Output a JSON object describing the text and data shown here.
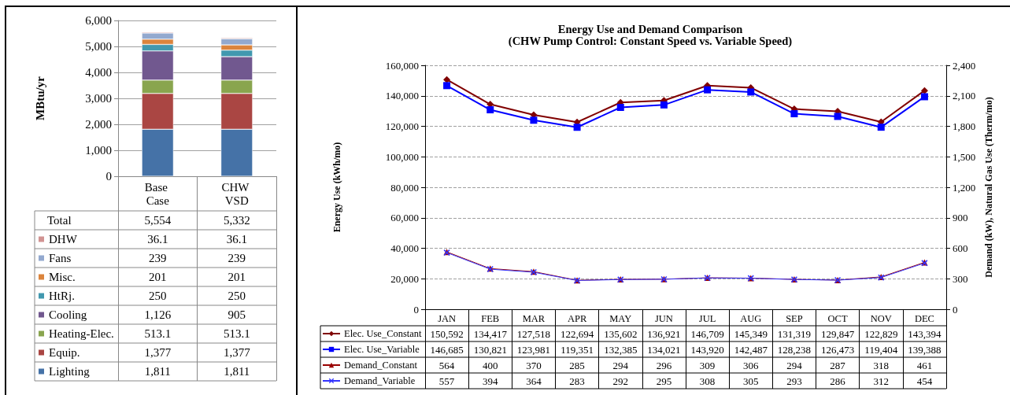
{
  "chart_data": [
    {
      "type": "bar",
      "stacked": true,
      "categories": [
        "Base Case",
        "CHW VSD"
      ],
      "ylabel": "MBtu/yr",
      "ylim": [
        0,
        6000
      ],
      "yticks": [
        0,
        {
          "value": 1000,
          "label": "1,000"
        },
        {
          "value": 2000,
          "label": "2,000"
        },
        {
          "value": 3000,
          "label": "3,000"
        },
        {
          "value": 4000,
          "label": "4,000"
        },
        {
          "value": 5000,
          "label": "5,000"
        },
        {
          "value": 6000,
          "label": "6,000"
        }
      ],
      "grid": "y",
      "legend": "bottom",
      "annotations": [
        "Total",
        "5,554",
        "5,332"
      ],
      "series": [
        {
          "name": "Lighting",
          "color": "#4572a7",
          "values": [
            1811,
            1811
          ],
          "value_labels": [
            "1,811",
            "1,811"
          ]
        },
        {
          "name": "Equip.",
          "color": "#aa4643",
          "values": [
            1377,
            1377
          ],
          "value_labels": [
            "1,377",
            "1,377"
          ]
        },
        {
          "name": "Heating-Elec.",
          "color": "#89a54e",
          "values": [
            513.1,
            513.1
          ],
          "value_labels": [
            "513.1",
            "513.1"
          ]
        },
        {
          "name": "Cooling",
          "color": "#71588f",
          "values": [
            1126,
            905
          ],
          "value_labels": [
            "1,126",
            "905"
          ]
        },
        {
          "name": "HtRj.",
          "color": "#4198af",
          "values": [
            250,
            250
          ],
          "value_labels": [
            "250",
            "250"
          ]
        },
        {
          "name": "Misc.",
          "color": "#db843d",
          "values": [
            201,
            201
          ],
          "value_labels": [
            "201",
            "201"
          ]
        },
        {
          "name": "Fans",
          "color": "#93a9cf",
          "values": [
            239,
            239
          ],
          "value_labels": [
            "239",
            "239"
          ]
        },
        {
          "name": "DHW",
          "color": "#d19392",
          "values": [
            36.1,
            36.1
          ],
          "value_labels": [
            "36.1",
            "36.1"
          ]
        }
      ]
    },
    {
      "type": "line",
      "title": "Energy Use and Demand Comparison",
      "subtitle": "(CHW Pump Control: Constant Speed vs. Variable Speed)",
      "categories": [
        "JAN",
        "FEB",
        "MAR",
        "APR",
        "MAY",
        "JUN",
        "JUL",
        "AUG",
        "SEP",
        "OCT",
        "NOV",
        "DEC"
      ],
      "ylabel": "Energy Use (kWh/mo)",
      "y2label": "Demand (kW), Natural Gas Use (Therm/mo)",
      "ylim": [
        0,
        160000
      ],
      "yticks": [
        0,
        {
          "value": 20000,
          "label": "20,000"
        },
        {
          "value": 40000,
          "label": "40,000"
        },
        {
          "value": 60000,
          "label": "60,000"
        },
        {
          "value": 80000,
          "label": "80,000"
        },
        {
          "value": 100000,
          "label": "100,000"
        },
        {
          "value": 120000,
          "label": "120,000"
        },
        {
          "value": 140000,
          "label": "140,000"
        },
        {
          "value": 160000,
          "label": "160,000"
        }
      ],
      "y2lim": [
        0,
        2400
      ],
      "y2ticks": [
        0,
        300,
        600,
        900,
        {
          "value": 1200,
          "label": "1,200"
        },
        {
          "value": 1500,
          "label": "1,500"
        },
        {
          "value": 1800,
          "label": "1,800"
        },
        {
          "value": 2100,
          "label": "2,100"
        },
        {
          "value": 2400,
          "label": "2,400"
        }
      ],
      "grid": "y",
      "legend": "bottom",
      "series": [
        {
          "name": "Elec. Use_Constant",
          "color": "#800000",
          "marker": "diamond",
          "values": [
            150592,
            134417,
            127518,
            122694,
            135602,
            136921,
            146709,
            145349,
            131319,
            129847,
            122829,
            143394
          ],
          "value_labels": [
            "150,592",
            "134,417",
            "127,518",
            "122,694",
            "135,602",
            "136,921",
            "146,709",
            "145,349",
            "131,319",
            "129,847",
            "122,829",
            "143,394"
          ]
        },
        {
          "name": "Elec. Use_Variable",
          "color": "#0000ff",
          "marker": "square",
          "values": [
            146685,
            130821,
            123981,
            119351,
            132385,
            134021,
            143920,
            142487,
            128238,
            126473,
            119404,
            139388
          ],
          "value_labels": [
            "146,685",
            "130,821",
            "123,981",
            "119,351",
            "132,385",
            "134,021",
            "143,920",
            "142,487",
            "128,238",
            "126,473",
            "119,404",
            "139,388"
          ]
        },
        {
          "name": "Demand_Constant",
          "color": "#990000",
          "marker": "triangle",
          "axis": "y2",
          "values": [
            564,
            400,
            370,
            285,
            294,
            296,
            309,
            306,
            294,
            287,
            318,
            461
          ],
          "value_labels": [
            "564",
            "400",
            "370",
            "285",
            "294",
            "296",
            "309",
            "306",
            "294",
            "287",
            "318",
            "461"
          ]
        },
        {
          "name": "Demand_Variable",
          "color": "#3333ff",
          "marker": "cross",
          "axis": "y2",
          "values": [
            557,
            394,
            364,
            283,
            292,
            295,
            308,
            305,
            293,
            286,
            312,
            454
          ],
          "value_labels": [
            "557",
            "394",
            "364",
            "283",
            "292",
            "295",
            "308",
            "305",
            "293",
            "286",
            "312",
            "454"
          ]
        }
      ]
    }
  ]
}
